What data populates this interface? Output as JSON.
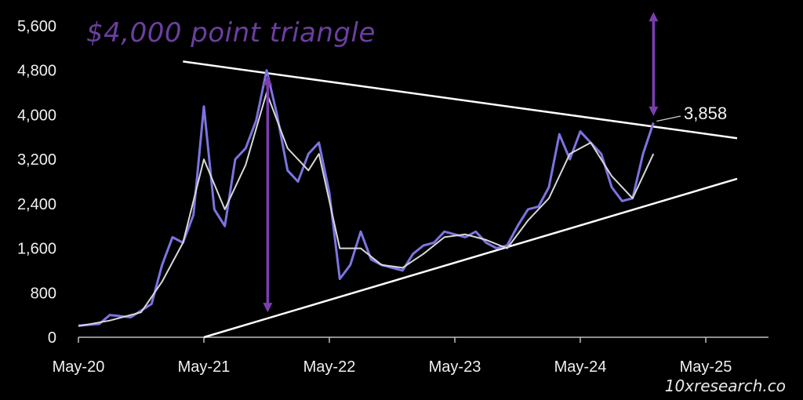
{
  "chart_data": {
    "type": "line",
    "title": "$4,000 point triangle",
    "watermark": "10xresearch.co",
    "yticks": [
      "0",
      "800",
      "1,600",
      "2,400",
      "3,200",
      "4,000",
      "4,800",
      "5,600"
    ],
    "ytick_values": [
      0,
      800,
      1600,
      2400,
      3200,
      4000,
      4800,
      5600
    ],
    "xticks": [
      "May-20",
      "May-21",
      "May-22",
      "May-23",
      "May-24",
      "May-25"
    ],
    "xtick_values": [
      "2020-05",
      "2021-05",
      "2022-05",
      "2023-05",
      "2024-05",
      "2025-05"
    ],
    "ylim": [
      0,
      5600
    ],
    "xlim": [
      "2020-05",
      "2025-08"
    ],
    "grid": false,
    "colors": {
      "price": "#7b74e0",
      "ma": "#d8d8d8",
      "trend": "#ffffff",
      "arrow": "#7b3fb0",
      "title": "#6b3fa0"
    },
    "series": [
      {
        "name": "",
        "values": [
          [
            "2020-05",
            210
          ],
          [
            "2020-07",
            240
          ],
          [
            "2020-08",
            400
          ],
          [
            "2020-10",
            360
          ],
          [
            "2020-12",
            600
          ],
          [
            "2021-01",
            1300
          ],
          [
            "2021-02",
            1800
          ],
          [
            "2021-03",
            1700
          ],
          [
            "2021-04",
            2200
          ],
          [
            "2021-05",
            4150
          ],
          [
            "2021-06",
            2300
          ],
          [
            "2021-07",
            2000
          ],
          [
            "2021-08",
            3200
          ],
          [
            "2021-09",
            3400
          ],
          [
            "2021-10",
            3900
          ],
          [
            "2021-11",
            4800
          ],
          [
            "2021-12",
            4000
          ],
          [
            "2022-01",
            3000
          ],
          [
            "2022-02",
            2800
          ],
          [
            "2022-03",
            3300
          ],
          [
            "2022-04",
            3500
          ],
          [
            "2022-05",
            2600
          ],
          [
            "2022-06",
            1050
          ],
          [
            "2022-07",
            1300
          ],
          [
            "2022-08",
            1900
          ],
          [
            "2022-09",
            1400
          ],
          [
            "2022-10",
            1300
          ],
          [
            "2022-11",
            1250
          ],
          [
            "2022-12",
            1200
          ],
          [
            "2023-01",
            1500
          ],
          [
            "2023-02",
            1650
          ],
          [
            "2023-03",
            1700
          ],
          [
            "2023-04",
            1900
          ],
          [
            "2023-05",
            1850
          ],
          [
            "2023-06",
            1800
          ],
          [
            "2023-07",
            1900
          ],
          [
            "2023-08",
            1700
          ],
          [
            "2023-09",
            1600
          ],
          [
            "2023-10",
            1650
          ],
          [
            "2023-11",
            2000
          ],
          [
            "2023-12",
            2300
          ],
          [
            "2024-01",
            2350
          ],
          [
            "2024-02",
            2700
          ],
          [
            "2024-03",
            3650
          ],
          [
            "2024-04",
            3200
          ],
          [
            "2024-05",
            3700
          ],
          [
            "2024-06",
            3500
          ],
          [
            "2024-07",
            3300
          ],
          [
            "2024-08",
            2700
          ],
          [
            "2024-09",
            2450
          ],
          [
            "2024-10",
            2500
          ],
          [
            "2024-11",
            3300
          ],
          [
            "2024-12",
            3858
          ]
        ]
      },
      {
        "name": "",
        "values": [
          [
            "2020-05",
            200
          ],
          [
            "2020-08",
            300
          ],
          [
            "2020-11",
            450
          ],
          [
            "2021-01",
            1000
          ],
          [
            "2021-03",
            1700
          ],
          [
            "2021-05",
            3200
          ],
          [
            "2021-07",
            2300
          ],
          [
            "2021-09",
            3100
          ],
          [
            "2021-11",
            4400
          ],
          [
            "2022-01",
            3400
          ],
          [
            "2022-03",
            3000
          ],
          [
            "2022-04",
            3300
          ],
          [
            "2022-06",
            1600
          ],
          [
            "2022-08",
            1600
          ],
          [
            "2022-10",
            1300
          ],
          [
            "2022-12",
            1250
          ],
          [
            "2023-02",
            1500
          ],
          [
            "2023-04",
            1800
          ],
          [
            "2023-06",
            1850
          ],
          [
            "2023-08",
            1750
          ],
          [
            "2023-10",
            1600
          ],
          [
            "2023-12",
            2100
          ],
          [
            "2024-02",
            2500
          ],
          [
            "2024-04",
            3300
          ],
          [
            "2024-06",
            3500
          ],
          [
            "2024-08",
            2900
          ],
          [
            "2024-10",
            2500
          ],
          [
            "2024-12",
            3300
          ]
        ]
      }
    ],
    "trendlines": [
      {
        "from": [
          "2021-03",
          4960
        ],
        "to": [
          "2025-08",
          3580
        ]
      },
      {
        "from": [
          "2021-05",
          0
        ],
        "to": [
          "2025-08",
          2850
        ]
      }
    ],
    "arrows": [
      {
        "x": "2021-12",
        "y_from": 4700,
        "y_to": 450
      },
      {
        "x": "2024-12",
        "y_from": 5850,
        "y_to": 3980
      }
    ],
    "annotations": [
      {
        "text": "3,858",
        "x": "2024-12",
        "y": 3858
      }
    ]
  }
}
